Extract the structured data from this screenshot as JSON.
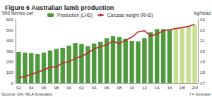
{
  "chart_data": {
    "type": "bar",
    "title": "Figure 6 Australian lamb production",
    "ylabel": "'000 tonnes cwt",
    "y2label": "kg/head",
    "annotations": [
      "Source: DA, MLA forecasts",
      "f = forecast"
    ],
    "categories": [
      "92",
      null,
      "94",
      null,
      "96",
      null,
      "98",
      null,
      "00",
      null,
      "02",
      null,
      "04",
      null,
      "06",
      null,
      "08",
      null,
      "10",
      null,
      "12",
      null,
      "14",
      null,
      "16",
      null,
      "18f",
      null,
      "20f"
    ],
    "series": [
      {
        "name": "Production (LHS)",
        "type": "bar",
        "color": "#4f9a3c",
        "colors": [
          "#4f9a3c",
          "#4f9a3c",
          "#4f9a3c",
          "#4f9a3c",
          "#4f9a3c",
          "#4f9a3c",
          "#4f9a3c",
          "#4f9a3c",
          "#4f9a3c",
          "#4f9a3c",
          "#4f9a3c",
          "#4f9a3c",
          "#4f9a3c",
          "#4f9a3c",
          "#4f9a3c",
          "#4f9a3c",
          "#4f9a3c",
          "#4f9a3c",
          "#4f9a3c",
          "#4f9a3c",
          "#4f9a3c",
          "#4f9a3c",
          "#4f9a3c",
          "#4f9a3c",
          "#4f9a3c",
          "#c8df8f",
          "#c8df8f",
          "#c8df8f",
          "#c8df8f"
        ],
        "values": [
          290,
          285,
          280,
          270,
          285,
          305,
          320,
          330,
          350,
          375,
          365,
          345,
          370,
          385,
          420,
          440,
          430,
          415,
          395,
          390,
          420,
          475,
          505,
          505,
          500,
          510,
          520,
          530,
          545
        ]
      },
      {
        "name": "Carcase weight (RHS)",
        "type": "line",
        "axis": "y2",
        "color": "#c1272d",
        "marker": "none",
        "values": [
          17.5,
          17.6,
          17.8,
          18.0,
          18.2,
          18.5,
          18.5,
          18.9,
          19.0,
          19.3,
          19.5,
          19.8,
          20.2,
          20.4,
          20.6,
          20.9,
          20.7,
          21.0,
          21.3,
          21.8,
          21.9,
          21.4,
          21.6,
          21.9,
          22.0,
          22.1,
          22.2,
          22.3,
          22.5
        ]
      }
    ],
    "ylim": [
      0,
      600
    ],
    "yticks": [
      0,
      100,
      200,
      300,
      400,
      500,
      600
    ],
    "y2lim": [
      17,
      23
    ],
    "y2ticks": [
      17,
      18,
      19,
      20,
      21,
      22,
      23
    ],
    "grid": false,
    "legend": "top"
  }
}
